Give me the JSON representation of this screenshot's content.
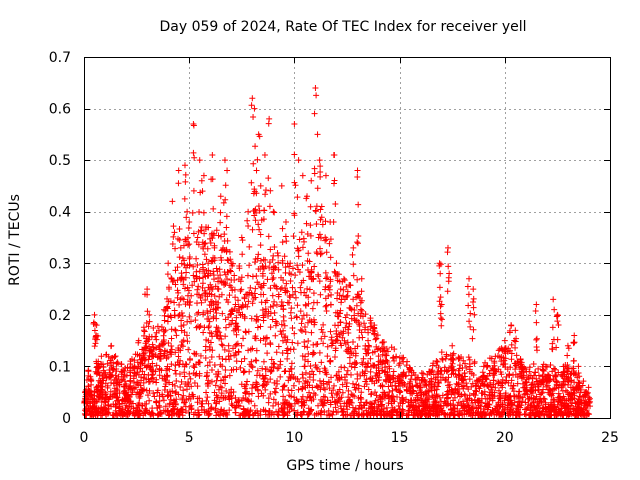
{
  "chart_data": {
    "type": "scatter",
    "title": "Day 059 of 2024, Rate Of TEC Index for receiver yell",
    "xlabel": "GPS time / hours",
    "ylabel": "ROTI / TECUs",
    "xlim": [
      0,
      25
    ],
    "ylim": [
      0,
      0.7
    ],
    "xticks": [
      0,
      5,
      10,
      15,
      20,
      25
    ],
    "yticks": [
      0,
      0.1,
      0.2,
      0.3,
      0.4,
      0.5,
      0.6,
      0.7
    ],
    "grid": true,
    "marker": "+",
    "color": "#ff0000",
    "series": [
      {
        "name": "ROTI",
        "x": [
          0.1,
          0.3,
          0.5,
          0.6,
          0.65,
          0.8,
          1.0,
          1.3,
          1.5,
          1.6,
          2.0,
          2.4,
          2.6,
          2.9,
          3.0,
          3.1,
          3.3,
          3.6,
          3.8,
          4.0,
          4.2,
          4.3,
          4.5,
          4.6,
          4.7,
          4.8,
          4.9,
          5.0,
          5.2,
          5.4,
          5.5,
          5.6,
          5.7,
          5.8,
          5.9,
          6.0,
          6.1,
          6.2,
          6.3,
          6.4,
          6.5,
          6.7,
          6.8,
          7.0,
          7.2,
          7.5,
          7.8,
          8.0,
          8.1,
          8.2,
          8.3,
          8.4,
          8.5,
          8.6,
          8.8,
          9.0,
          9.2,
          9.4,
          9.6,
          9.8,
          10.0,
          10.2,
          10.4,
          10.6,
          10.8,
          11.0,
          11.1,
          11.2,
          11.3,
          11.5,
          11.7,
          11.9,
          12.0,
          12.2,
          12.5,
          12.8,
          13.0,
          13.2,
          13.5,
          13.8,
          14.0,
          14.5,
          15.0,
          15.5,
          16.0,
          16.5,
          16.9,
          17.0,
          17.3,
          17.5,
          18.0,
          18.3,
          18.5,
          19.0,
          19.5,
          20.0,
          20.3,
          20.5,
          20.8,
          21.0,
          21.5,
          22.0,
          22.3,
          22.5,
          22.8,
          23.0,
          23.3,
          23.5,
          23.8,
          24.0
        ],
        "y": [
          0.05,
          0.08,
          0.2,
          0.18,
          0.1,
          0.06,
          0.05,
          0.14,
          0.12,
          0.07,
          0.05,
          0.1,
          0.15,
          0.24,
          0.25,
          0.2,
          0.12,
          0.14,
          0.21,
          0.3,
          0.42,
          0.36,
          0.48,
          0.33,
          0.31,
          0.49,
          0.4,
          0.38,
          0.57,
          0.35,
          0.5,
          0.46,
          0.47,
          0.37,
          0.3,
          0.28,
          0.51,
          0.33,
          0.29,
          0.25,
          0.43,
          0.5,
          0.48,
          0.3,
          0.22,
          0.35,
          0.4,
          0.62,
          0.6,
          0.48,
          0.55,
          0.45,
          0.28,
          0.51,
          0.58,
          0.4,
          0.32,
          0.45,
          0.38,
          0.3,
          0.57,
          0.5,
          0.47,
          0.43,
          0.46,
          0.64,
          0.55,
          0.5,
          0.41,
          0.47,
          0.38,
          0.51,
          0.3,
          0.25,
          0.2,
          0.33,
          0.48,
          0.27,
          0.15,
          0.18,
          0.12,
          0.1,
          0.08,
          0.07,
          0.06,
          0.09,
          0.3,
          0.22,
          0.33,
          0.14,
          0.08,
          0.27,
          0.25,
          0.1,
          0.11,
          0.15,
          0.18,
          0.17,
          0.1,
          0.07,
          0.22,
          0.08,
          0.23,
          0.2,
          0.09,
          0.14,
          0.16,
          0.1,
          0.05,
          0.04
        ],
        "density_envelope": {
          "x": [
            0,
            1,
            2,
            3,
            4,
            5,
            6,
            7,
            8,
            9,
            10,
            11,
            12,
            13,
            14,
            15,
            16,
            17,
            18,
            19,
            20,
            21,
            22,
            23,
            24
          ],
          "y_max": [
            0.09,
            0.12,
            0.1,
            0.15,
            0.22,
            0.32,
            0.38,
            0.32,
            0.3,
            0.32,
            0.3,
            0.3,
            0.28,
            0.24,
            0.16,
            0.12,
            0.08,
            0.12,
            0.12,
            0.1,
            0.14,
            0.1,
            0.1,
            0.1,
            0.06
          ]
        }
      }
    ]
  }
}
